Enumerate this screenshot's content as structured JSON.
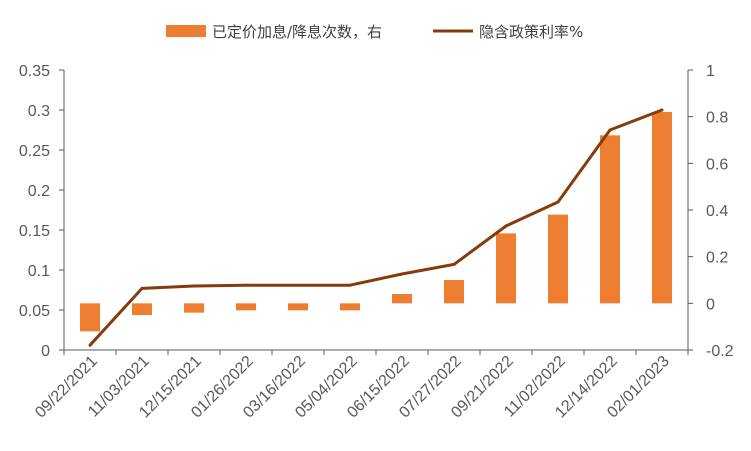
{
  "chart_data": {
    "type": "bar+line",
    "categories": [
      "09/22/2021",
      "11/03/2021",
      "12/15/2021",
      "01/26/2022",
      "03/16/2022",
      "05/04/2022",
      "06/15/2022",
      "07/27/2022",
      "09/21/2022",
      "11/02/2022",
      "12/14/2022",
      "02/01/2023"
    ],
    "series": [
      {
        "name": "已定价加息/降息次数，右",
        "type": "bar",
        "axis": "right",
        "color": "#ED7D31",
        "values": [
          -0.12,
          -0.05,
          -0.04,
          -0.03,
          -0.03,
          -0.03,
          0.04,
          0.1,
          0.3,
          0.38,
          0.72,
          0.82
        ]
      },
      {
        "name": "隐含政策利率%",
        "type": "line",
        "axis": "left",
        "color": "#843C0C",
        "values": [
          0.006,
          0.077,
          0.08,
          0.081,
          0.081,
          0.081,
          0.095,
          0.107,
          0.155,
          0.185,
          0.275,
          0.3
        ]
      }
    ],
    "y_left": {
      "min": 0,
      "max": 0.35,
      "ticks": [
        "0",
        "0.05",
        "0.1",
        "0.15",
        "0.2",
        "0.25",
        "0.3",
        "0.35"
      ]
    },
    "y_right": {
      "min": -0.2,
      "max": 1,
      "ticks": [
        "-0.2",
        "0",
        "0.2",
        "0.4",
        "0.6",
        "0.8",
        "1"
      ]
    },
    "grid": false,
    "legend_position": "top"
  }
}
